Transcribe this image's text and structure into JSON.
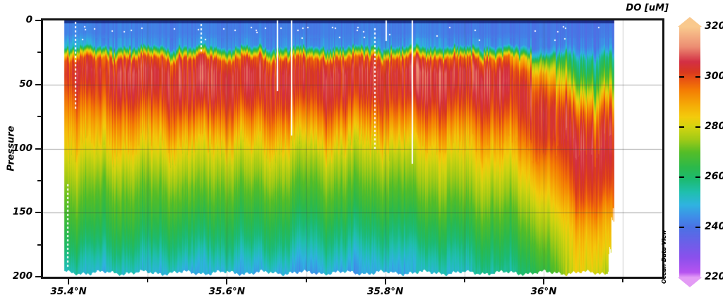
{
  "title": "DO [uM]",
  "attribution": "Ocean Data View",
  "chart_data": {
    "type": "heatmap",
    "title": "DO [uM]",
    "xlabel": "",
    "ylabel": "Pressure",
    "xlim_deg_n": [
      35.368,
      36.15
    ],
    "ylim": [
      0,
      200
    ],
    "y_axis_reversed": true,
    "x_tick_labels": [
      "35.4°N",
      "35.6°N",
      "35.8°N",
      "36°N"
    ],
    "x_tick_lats": [
      35.4,
      35.6,
      35.8,
      36.0
    ],
    "x_minor_tick_lats": [
      35.5,
      35.7,
      35.9,
      36.1
    ],
    "y_tick_labels": [
      "0",
      "50",
      "100",
      "150",
      "200"
    ],
    "y_ticks": [
      0,
      50,
      100,
      150,
      200
    ],
    "y_minor_ticks": [
      25,
      75,
      125,
      175
    ],
    "gridlines": {
      "horizontal_at": [
        50,
        100,
        150
      ],
      "vertical_at": [
        35.5,
        35.6,
        35.7,
        35.8,
        35.9,
        36.0,
        36.1
      ]
    },
    "data_lat_extent": [
      35.394,
      36.089
    ],
    "colorbar": {
      "title": "DO [uM]",
      "min": 220,
      "max": 320,
      "tick_labels": [
        "320",
        "300",
        "280",
        "260",
        "240",
        "220"
      ],
      "tick_values": [
        320,
        300,
        280,
        260,
        240,
        220
      ],
      "inner_tick_values": [
        300,
        280,
        260,
        240
      ],
      "stops": [
        [
          320,
          "#f9c98e"
        ],
        [
          312,
          "#ec8d72"
        ],
        [
          306,
          "#d32f44"
        ],
        [
          302,
          "#d8381f"
        ],
        [
          299,
          "#e85312"
        ],
        [
          295,
          "#f47a04"
        ],
        [
          289,
          "#f5a906"
        ],
        [
          284,
          "#f3cb0c"
        ],
        [
          280,
          "#d3d410"
        ],
        [
          275,
          "#a0ca16"
        ],
        [
          270,
          "#55bd27"
        ],
        [
          264,
          "#2cb94a"
        ],
        [
          259,
          "#1cba72"
        ],
        [
          254,
          "#1fbfae"
        ],
        [
          249,
          "#2fb3e0"
        ],
        [
          244,
          "#3f8ce8"
        ],
        [
          240,
          "#4a72e4"
        ],
        [
          234,
          "#6a60e8"
        ],
        [
          228,
          "#8a50ec"
        ],
        [
          222,
          "#b653f0"
        ],
        [
          220,
          "#e39bf5"
        ]
      ]
    },
    "grid": {
      "lats": [
        35.4,
        35.45,
        35.5,
        35.55,
        35.6,
        35.65,
        35.7,
        35.75,
        35.8,
        35.85,
        35.9,
        35.95,
        36.0,
        36.04,
        36.08
      ],
      "pressures": [
        0,
        10,
        20,
        25,
        30,
        40,
        50,
        60,
        70,
        80,
        90,
        100,
        110,
        120,
        130,
        140,
        150,
        160,
        170,
        180,
        190,
        200
      ],
      "do_um": [
        [
          243,
          242,
          242,
          242,
          242,
          242,
          242,
          242,
          242,
          242,
          241,
          241,
          241,
          240,
          240
        ],
        [
          243,
          242,
          242,
          242,
          242,
          242,
          242,
          242,
          242,
          242,
          241,
          241,
          241,
          240,
          241
        ],
        [
          252,
          246,
          245,
          246,
          246,
          245,
          246,
          245,
          246,
          246,
          245,
          245,
          242,
          242,
          243
        ],
        [
          282,
          275,
          272,
          273,
          274,
          272,
          273,
          272,
          273,
          272,
          270,
          270,
          248,
          246,
          248
        ],
        [
          300,
          300,
          299,
          301,
          300,
          299,
          300,
          299,
          300,
          299,
          298,
          297,
          268,
          255,
          257
        ],
        [
          303,
          305,
          306,
          305,
          306,
          305,
          305,
          306,
          305,
          306,
          306,
          305,
          288,
          262,
          264
        ],
        [
          300,
          304,
          305,
          306,
          306,
          305,
          305,
          305,
          304,
          305,
          306,
          306,
          297,
          272,
          272
        ],
        [
          296,
          301,
          302,
          304,
          303,
          303,
          302,
          303,
          302,
          303,
          303,
          304,
          302,
          285,
          284
        ],
        [
          292,
          296,
          297,
          300,
          298,
          299,
          297,
          298,
          297,
          298,
          299,
          300,
          304,
          296,
          294
        ],
        [
          288,
          291,
          292,
          294,
          292,
          293,
          291,
          292,
          291,
          293,
          294,
          296,
          303,
          302,
          300
        ],
        [
          285,
          287,
          287,
          288,
          286,
          288,
          285,
          286,
          285,
          287,
          289,
          291,
          301,
          305,
          303
        ],
        [
          282,
          283,
          283,
          283,
          281,
          283,
          280,
          281,
          280,
          282,
          285,
          287,
          297,
          306,
          304
        ],
        [
          279,
          279,
          279,
          279,
          277,
          279,
          276,
          277,
          276,
          278,
          281,
          283,
          292,
          305,
          304
        ],
        [
          276,
          275,
          275,
          276,
          274,
          276,
          273,
          274,
          273,
          275,
          278,
          279,
          288,
          303,
          302
        ],
        [
          273,
          272,
          272,
          272,
          271,
          272,
          270,
          271,
          270,
          272,
          275,
          276,
          284,
          301,
          300
        ],
        [
          271,
          269,
          269,
          270,
          268,
          269,
          267,
          268,
          267,
          269,
          272,
          273,
          280,
          298,
          297
        ],
        [
          268,
          267,
          267,
          266,
          265,
          266,
          264,
          265,
          264,
          266,
          269,
          270,
          277,
          293,
          292
        ],
        [
          265,
          264,
          264,
          263,
          262,
          263,
          260,
          261,
          260,
          262,
          265,
          267,
          274,
          289,
          288
        ],
        [
          262,
          261,
          261,
          259,
          259,
          260,
          257,
          258,
          257,
          259,
          262,
          264,
          271,
          286,
          285
        ],
        [
          258,
          257,
          257,
          256,
          255,
          256,
          253,
          254,
          253,
          255,
          258,
          261,
          268,
          284,
          283
        ],
        [
          254,
          253,
          253,
          251,
          251,
          251,
          249,
          250,
          249,
          251,
          255,
          258,
          265,
          283,
          280
        ],
        [
          251,
          250,
          250,
          247,
          248,
          247,
          246,
          246,
          247,
          249,
          252,
          255,
          262,
          281,
          276
        ]
      ]
    },
    "data_gaps": [
      {
        "lat": 35.408,
        "p0": 1,
        "p1": 70,
        "style": "dotted"
      },
      {
        "lat": 35.398,
        "p0": 128,
        "p1": 192,
        "style": "dotted"
      },
      {
        "lat": 35.567,
        "p0": 3,
        "p1": 24,
        "style": "dotted"
      },
      {
        "lat": 35.663,
        "p0": 0,
        "p1": 55,
        "style": "solid"
      },
      {
        "lat": 35.681,
        "p0": 0,
        "p1": 90,
        "style": "solid"
      },
      {
        "lat": 35.786,
        "p0": 6,
        "p1": 100,
        "style": "dotted"
      },
      {
        "lat": 35.8,
        "p0": 0,
        "p1": 16,
        "style": "solid"
      },
      {
        "lat": 35.833,
        "p0": 0,
        "p1": 112,
        "style": "solid"
      }
    ],
    "surface_speckles": true
  }
}
